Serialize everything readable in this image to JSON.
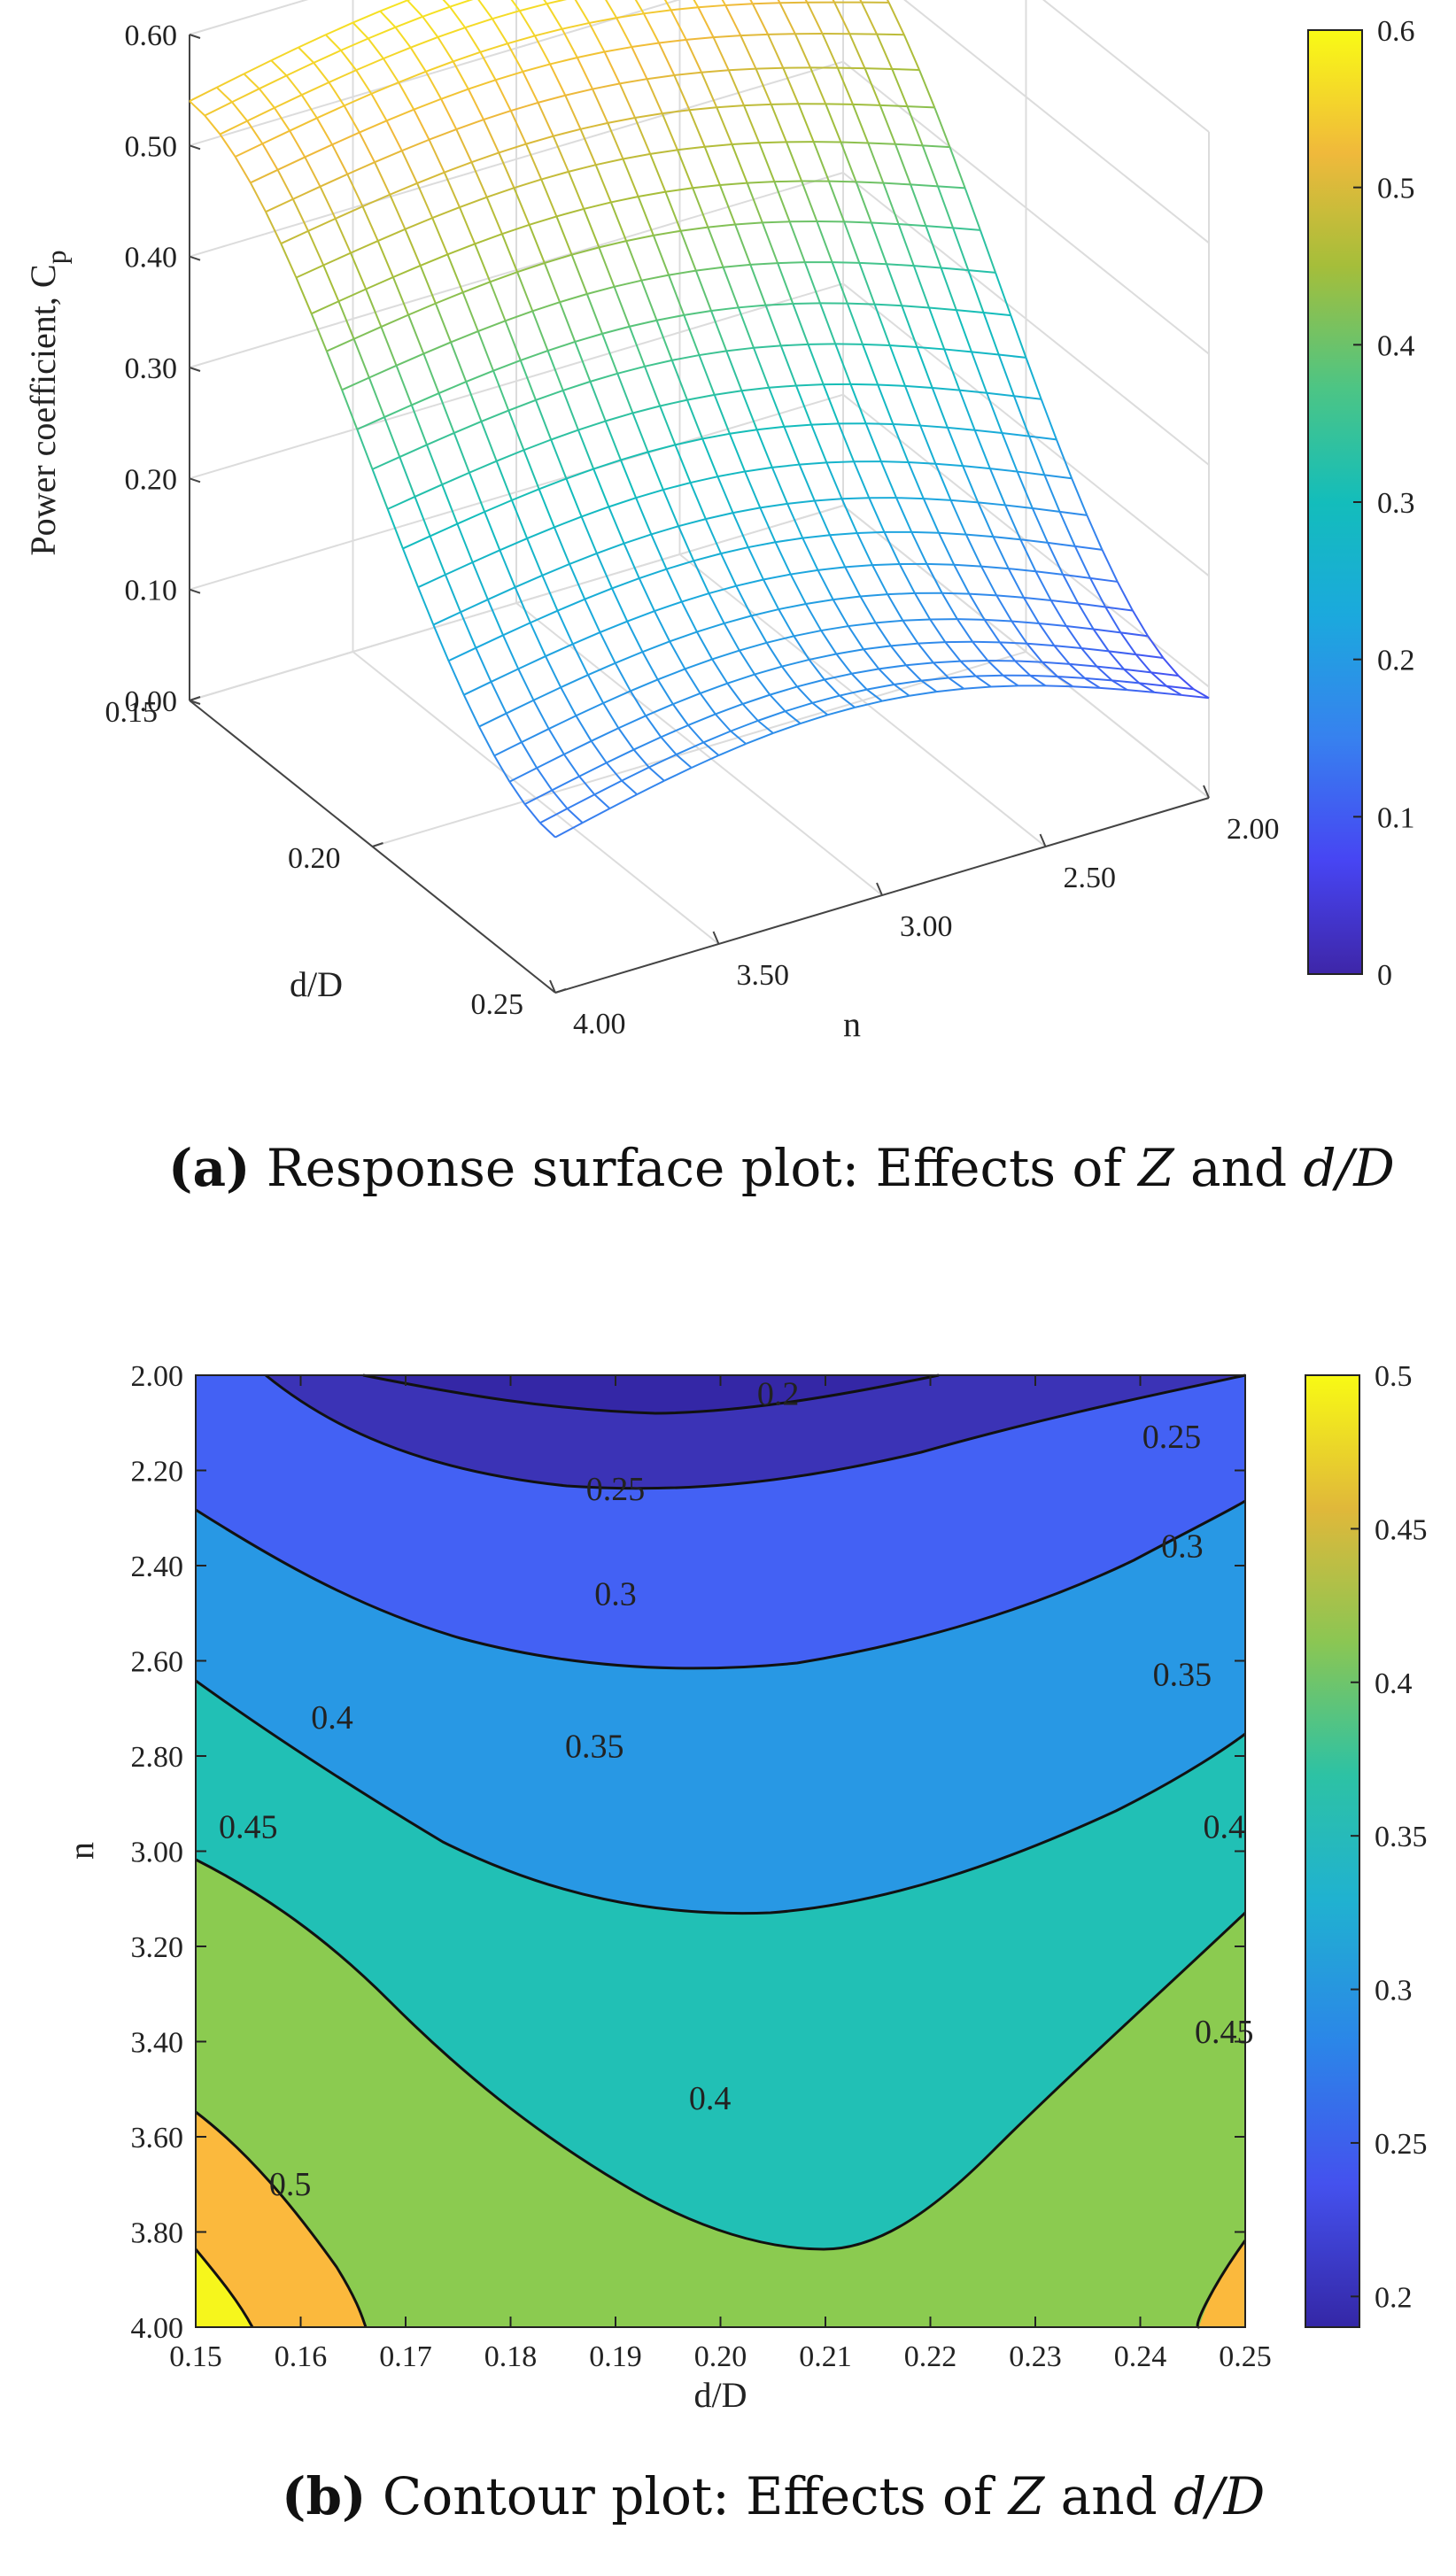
{
  "chart_data": [
    {
      "type": "surface",
      "panel": "a",
      "caption_label": "(a)",
      "caption_text": "Response surface plot: Effects of Z and d/D",
      "caption_pre": "Response surface plot: Effects of ",
      "caption_z": "Z",
      "caption_and": " and ",
      "caption_dD": "d/D",
      "zlabel": "Power coefficient, C",
      "zlabel_sub": "p",
      "xlabel": "n",
      "ylabel": "d/D",
      "z_ticks": [
        "0.00",
        "0.10",
        "0.20",
        "0.30",
        "0.40",
        "0.50",
        "0.60"
      ],
      "n_ticks": [
        "2.00",
        "2.50",
        "3.00",
        "3.50",
        "4.00"
      ],
      "d_ticks": [
        "0.15",
        "0.20",
        "0.25"
      ],
      "n_range": [
        2.0,
        4.0
      ],
      "dD_range": [
        0.15,
        0.25
      ],
      "z_range": [
        0.0,
        0.6
      ],
      "corner_values": {
        "dD_0.15_n_2.00": 0.52,
        "dD_0.15_n_4.00": 0.54,
        "dD_0.25_n_2.00": 0.09,
        "dD_0.25_n_4.00": 0.14
      },
      "colorbar": {
        "min": 0,
        "max": 0.6,
        "ticks": [
          "0",
          "0.1",
          "0.2",
          "0.3",
          "0.4",
          "0.5",
          "0.6"
        ]
      }
    },
    {
      "type": "contour",
      "panel": "b",
      "caption_label": "(b)",
      "caption_text": "Contour plot: Effects of Z and d/D",
      "caption_pre": "Contour plot: Effects of ",
      "caption_z": "Z",
      "caption_and": " and ",
      "caption_dD": "d/D",
      "xlabel": "d/D",
      "ylabel": "n",
      "x_ticks": [
        "0.15",
        "0.16",
        "0.17",
        "0.18",
        "0.19",
        "0.20",
        "0.21",
        "0.22",
        "0.23",
        "0.24",
        "0.25"
      ],
      "y_ticks": [
        "2.00",
        "2.20",
        "2.40",
        "2.60",
        "2.80",
        "3.00",
        "3.20",
        "3.40",
        "3.60",
        "3.80",
        "4.00"
      ],
      "xlim": [
        0.15,
        0.25
      ],
      "ylim": [
        2.0,
        4.0
      ],
      "levels": [
        0.2,
        0.25,
        0.3,
        0.35,
        0.4,
        0.45,
        0.5
      ],
      "contour_labels": [
        "0.2",
        "0.25",
        "0.25",
        "0.3",
        "0.3",
        "0.35",
        "0.35",
        "0.4",
        "0.4",
        "0.4",
        "0.45",
        "0.45",
        "0.5"
      ],
      "colorbar": {
        "min": 0.19,
        "max": 0.5,
        "ticks": [
          "0.2",
          "0.25",
          "0.3",
          "0.35",
          "0.4",
          "0.45",
          "0.5"
        ]
      },
      "band_colors": {
        "below_0.2": "#3427a6",
        "0.2-0.25": "#3b33b6",
        "0.25-0.3": "#4361f4",
        "0.3-0.35": "#2898e4",
        "0.35-0.4": "#21c0b5",
        "0.4-0.45": "#8bcb50",
        "0.45-0.5": "#fbb93d",
        "above_0.5": "#f6f61c"
      }
    }
  ]
}
